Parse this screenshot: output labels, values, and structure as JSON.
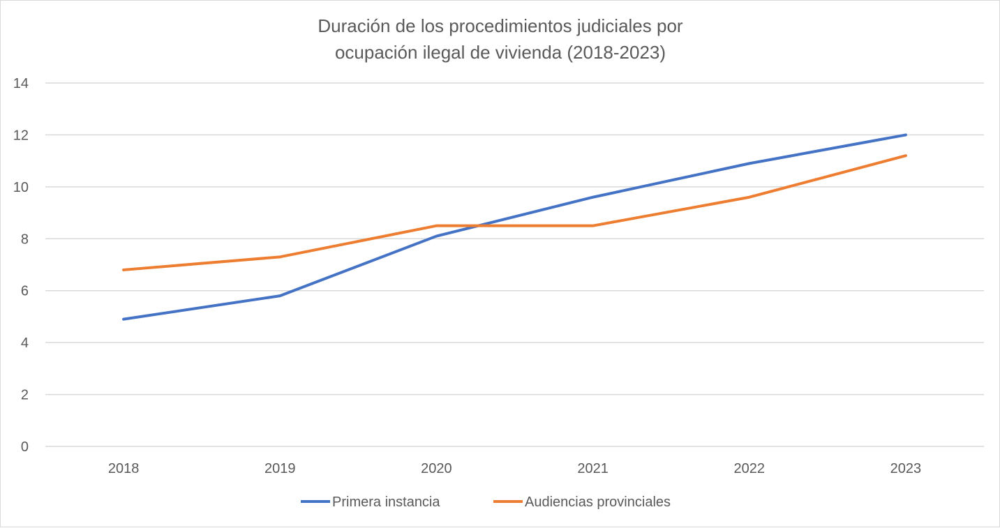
{
  "chart_data": {
    "type": "line",
    "title": [
      "Duración de los procedimientos judiciales por",
      "ocupación ilegal de vivienda (2018-2023)"
    ],
    "xlabel": "",
    "ylabel": "",
    "categories": [
      "2018",
      "2019",
      "2020",
      "2021",
      "2022",
      "2023"
    ],
    "ylim": [
      0,
      14
    ],
    "yticks": [
      0,
      2,
      4,
      6,
      8,
      10,
      12,
      14
    ],
    "grid": "horizontal",
    "legend": "bottom",
    "series": [
      {
        "name": "Primera instancia",
        "color": "#4472c4",
        "values": [
          4.9,
          5.8,
          8.1,
          9.6,
          10.9,
          12.0
        ]
      },
      {
        "name": "Audiencias provinciales",
        "color": "#ed7d31",
        "values": [
          6.8,
          7.3,
          8.5,
          8.5,
          9.6,
          11.2
        ]
      }
    ]
  }
}
